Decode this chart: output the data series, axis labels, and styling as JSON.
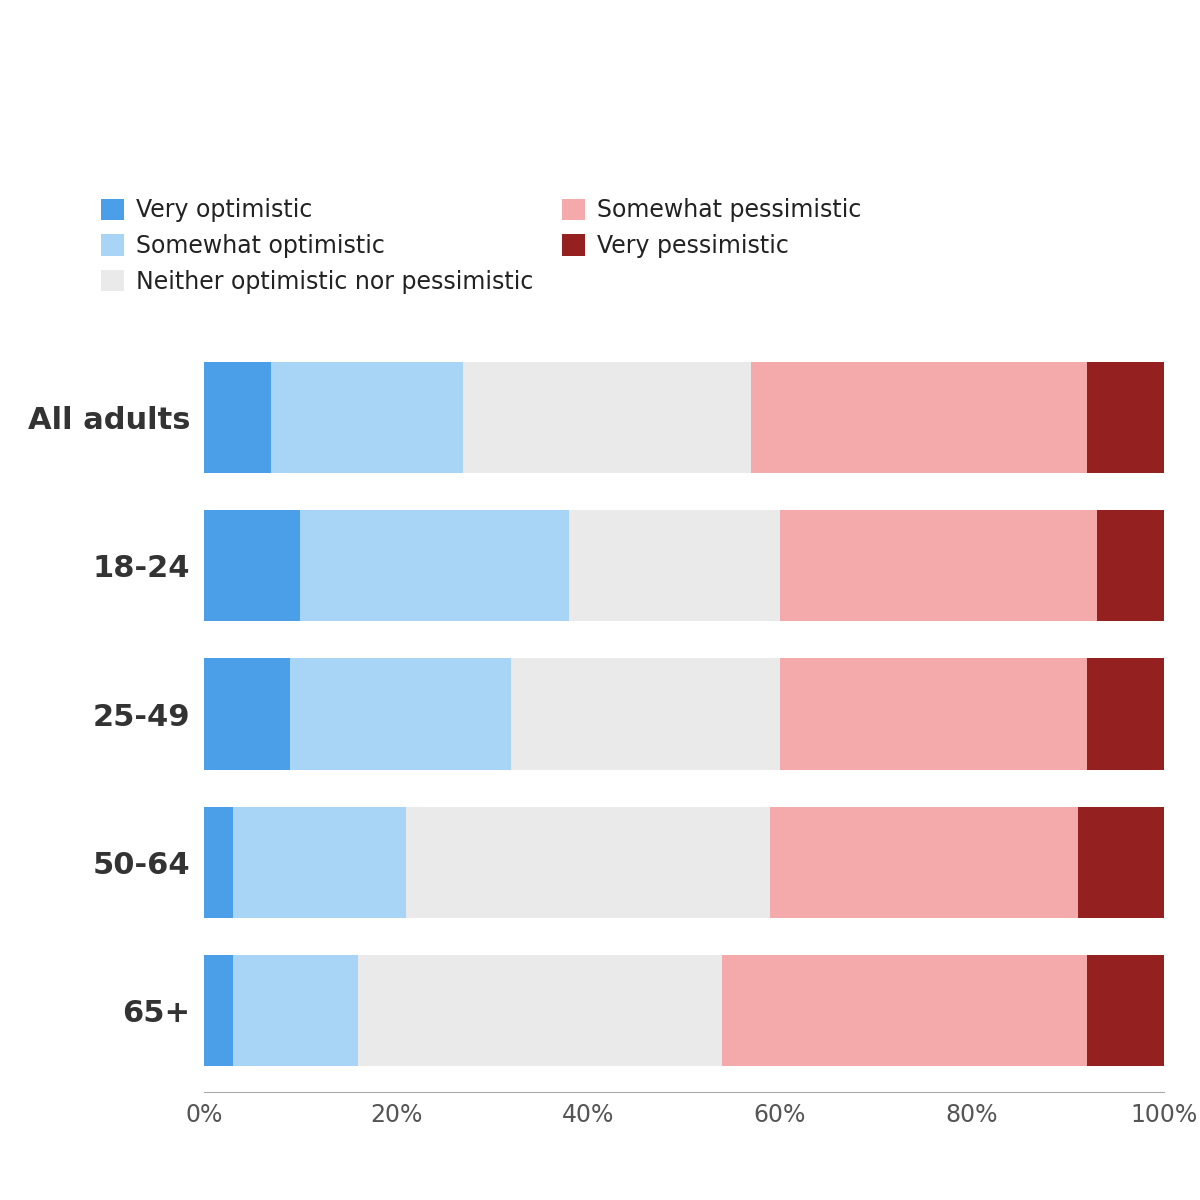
{
  "categories": [
    "All adults",
    "18-24",
    "25-49",
    "50-64",
    "65+"
  ],
  "series": [
    {
      "label": "Very optimistic",
      "color": "#4A9FE8",
      "values": [
        7,
        10,
        9,
        3,
        3
      ]
    },
    {
      "label": "Somewhat optimistic",
      "color": "#A8D4F5",
      "values": [
        20,
        28,
        23,
        18,
        13
      ]
    },
    {
      "label": "Neither optimistic nor pessimistic",
      "color": "#EAEAEA",
      "values": [
        30,
        22,
        28,
        38,
        38
      ]
    },
    {
      "label": "Somewhat pessimistic",
      "color": "#F4AAAA",
      "values": [
        35,
        33,
        32,
        32,
        38
      ]
    },
    {
      "label": "Very pessimistic",
      "color": "#942020",
      "values": [
        8,
        7,
        8,
        9,
        8
      ]
    }
  ],
  "xlim": [
    0,
    100
  ],
  "xticks": [
    0,
    20,
    40,
    60,
    80,
    100
  ],
  "xticklabels": [
    "0%",
    "20%",
    "40%",
    "60%",
    "80%",
    "100%"
  ],
  "bar_height": 0.75,
  "background_color": "#FFFFFF",
  "label_fontsize": 18,
  "tick_fontsize": 17,
  "legend_fontsize": 17,
  "ylabel_fontsize": 22
}
